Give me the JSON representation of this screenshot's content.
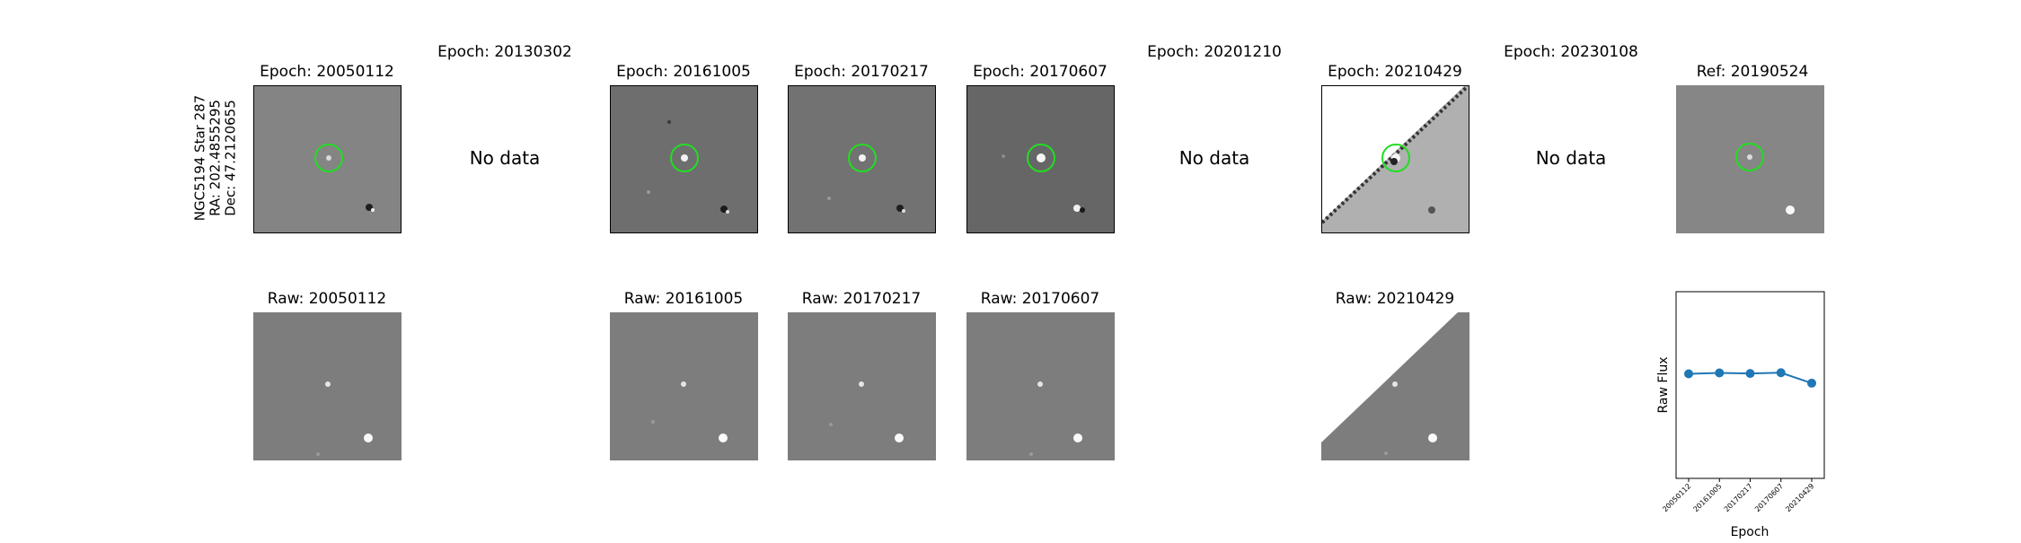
{
  "row_label": [
    "NGC5194 Star 287",
    "RA: 202.4855295",
    "Dec: 47.2120655"
  ],
  "no_data_text": "No data",
  "diff_titles": {
    "e1": "Epoch: 20050112",
    "e2": "Epoch: 20130302",
    "e3": "Epoch: 20161005",
    "e4": "Epoch: 20170217",
    "e5": "Epoch: 20170607",
    "e6": "Epoch: 20201210",
    "e7": "Epoch: 20210429",
    "e8": "Epoch: 20230108",
    "ref": "Ref: 20190524"
  },
  "raw_titles": {
    "r1": "Raw: 20050112",
    "r3": "Raw: 20161005",
    "r4": "Raw: 20170217",
    "r5": "Raw: 20170607",
    "r7": "Raw: 20210429"
  },
  "colors": {
    "marker_circle": "#22dd22",
    "series": "#1f77b4"
  },
  "chart_data": {
    "type": "line",
    "xlabel": "Epoch",
    "ylabel": "Raw Flux",
    "categories": [
      "20050112",
      "20161005",
      "20170217",
      "20170607",
      "20210429"
    ],
    "values": [
      0.56,
      0.565,
      0.562,
      0.566,
      0.51
    ],
    "ylim": [
      0,
      1
    ]
  }
}
